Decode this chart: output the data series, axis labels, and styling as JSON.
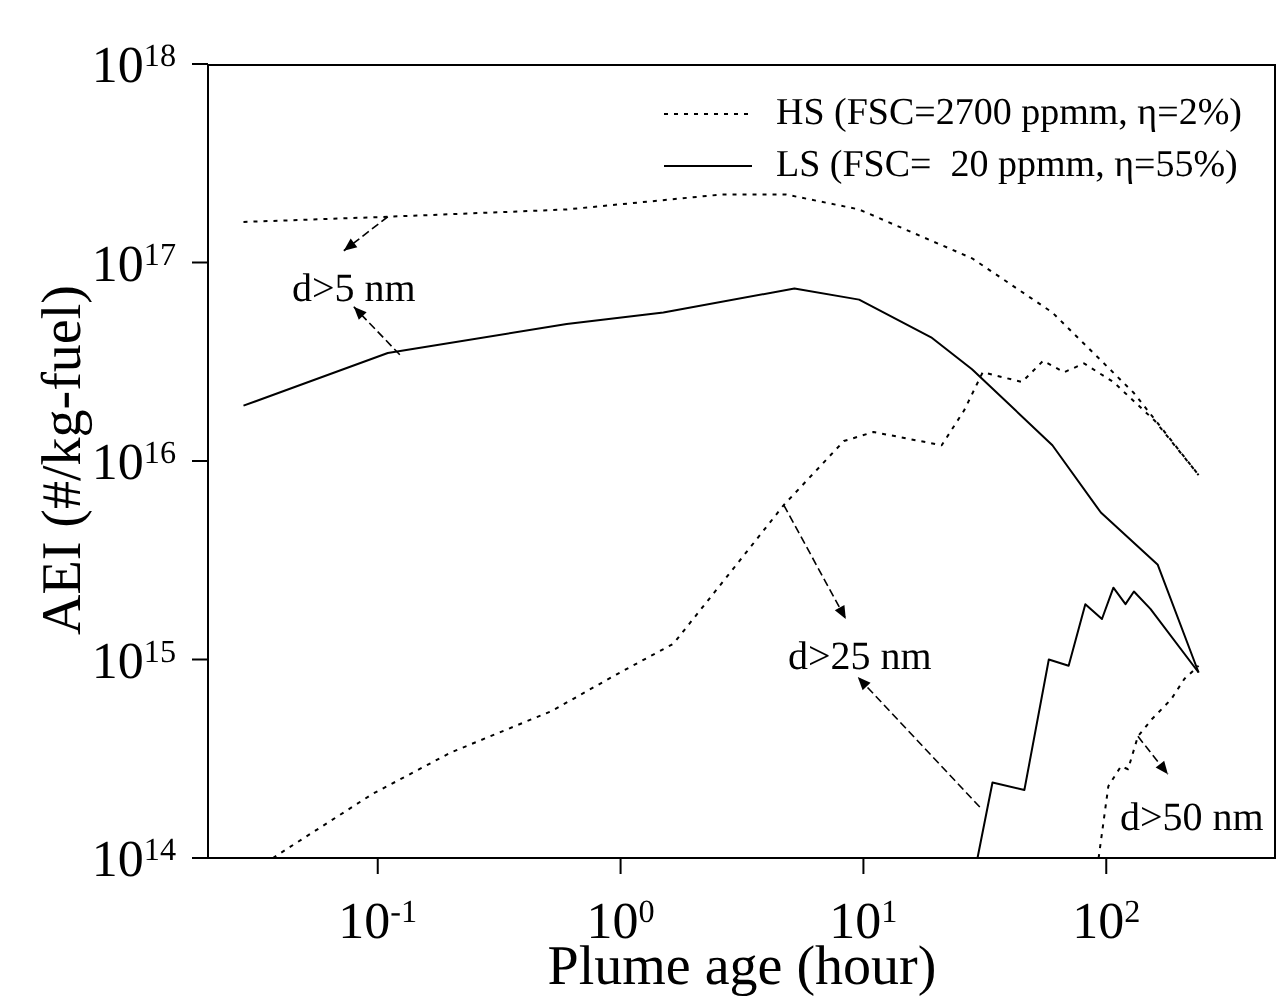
{
  "chart_data": {
    "type": "line",
    "xlabel": "Plume age (hour)",
    "ylabel": "AEI (#/kg-fuel)",
    "log": "xy",
    "xlim": [
      0.02,
      500
    ],
    "ylim": [
      100000000000000.0,
      1e+18
    ],
    "xticks": [
      {
        "value": 0.1,
        "label": "10$^{-1}$"
      },
      {
        "value": 1,
        "label": "10$^{0}$"
      },
      {
        "value": 10,
        "label": "10$^{1}$"
      },
      {
        "value": 100,
        "label": "10$^{2}$"
      }
    ],
    "yticks": [
      {
        "value": 100000000000000.0,
        "label": "10$^{14}$"
      },
      {
        "value": 1000000000000000.0,
        "label": "10$^{15}$"
      },
      {
        "value": 1e+16,
        "label": "10$^{16}$"
      },
      {
        "value": 1e+17,
        "label": "10$^{17}$"
      },
      {
        "value": 1e+18,
        "label": "10$^{18}$"
      }
    ],
    "legend": "top right",
    "marker": "none",
    "series": [
      {
        "name": "HS (FSC=2700 ppmm, η=2%)",
        "color": "#000000",
        "line_style": "dotted",
        "x": [
          0.028,
          0.11,
          0.6,
          2.6,
          4.8,
          9.6,
          28,
          60,
          130,
          240
        ],
        "values": [
          1.6e+17,
          1.7e+17,
          1.85e+17,
          2.2e+17,
          2.2e+17,
          1.85e+17,
          1.05e+17,
          5.6e+16,
          2.2e+16,
          8500000000000000.0
        ]
      },
      {
        "name": "LS (FSC=  20 ppmm, η=55%)",
        "color": "#000000",
        "line_style": "solid",
        "x": [
          0.028,
          0.11,
          0.6,
          1.5,
          5.2,
          9.6,
          19,
          28,
          60,
          95,
          163,
          240
        ],
        "values": [
          1.9e+16,
          3.5e+16,
          4.9e+16,
          5.6e+16,
          7.4e+16,
          6.5e+16,
          4.2e+16,
          2.9e+16,
          1.2e+16,
          5500000000000000.0,
          3000000000000000.0,
          860000000000000.0
        ]
      },
      {
        "color": "#000000",
        "line_style": "dotted",
        "x": [
          0.037,
          0.095,
          0.2,
          0.52,
          0.96,
          1.65,
          2.8,
          4.7,
          8.3,
          11,
          21,
          26,
          31,
          45,
          55,
          67,
          81,
          107,
          158,
          240
        ],
        "values": [
          100000000000000.0,
          210000000000000.0,
          340000000000000.0,
          550000000000000.0,
          840000000000000.0,
          1200000000000000.0,
          2700000000000000.0,
          6000000000000000.0,
          1.26e+16,
          1.4e+16,
          1.2e+16,
          1.8e+16,
          2.8e+16,
          2.5e+16,
          3.2e+16,
          2.8e+16,
          3.1e+16,
          2.5e+16,
          1.6e+16,
          8500000000000000.0
        ]
      },
      {
        "color": "#000000",
        "line_style": "solid",
        "x": [
          29.5,
          34,
          46,
          58,
          70,
          82,
          96,
          107,
          120,
          130,
          152,
          240
        ],
        "values": [
          100000000000000.0,
          240000000000000.0,
          220000000000000.0,
          1000000000000000.0,
          930000000000000.0,
          1900000000000000.0,
          1600000000000000.0,
          2300000000000000.0,
          1900000000000000.0,
          2200000000000000.0,
          1800000000000000.0,
          860000000000000.0
        ]
      },
      {
        "color": "#000000",
        "line_style": "dotted",
        "x": [
          93,
          102,
          115,
          123,
          135,
          154,
          185,
          210,
          240
        ],
        "values": [
          100000000000000.0,
          230000000000000.0,
          290000000000000.0,
          280000000000000.0,
          410000000000000.0,
          500000000000000.0,
          630000000000000.0,
          800000000000000.0,
          930000000000000.0
        ]
      }
    ],
    "annotations": [
      {
        "text": "d>5 nm",
        "x": 0.11,
        "y": 1.7e+17
      },
      {
        "text": "d>25 nm",
        "x": 4.7,
        "y": 6000000000000000.0
      },
      {
        "text": "d>50 nm",
        "x": 135,
        "y": 410000000000000.0
      }
    ]
  }
}
